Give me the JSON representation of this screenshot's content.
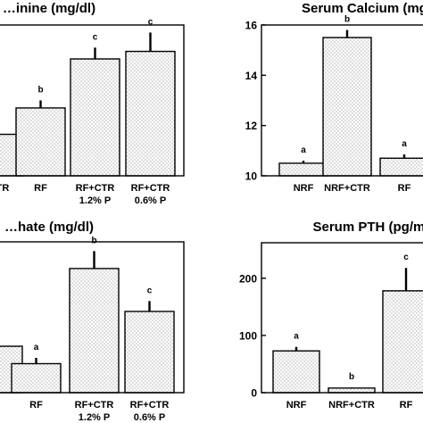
{
  "chart_data": [
    {
      "type": "bar",
      "title": "…inine (mg/dl)",
      "categories": [
        "…TR",
        "RF",
        "RF+CTR\n1.2% P",
        "RF+CTR\n0.6% P"
      ],
      "values": [
        2.1,
        2.8,
        4.1,
        4.3
      ],
      "errors": [
        0.0,
        0.2,
        0.3,
        0.5
      ],
      "sig_labels": [
        "",
        "b",
        "c",
        "c"
      ],
      "ylim": [
        1.0,
        5.0
      ],
      "yticks": [],
      "xlabel": "",
      "ylabel": "",
      "grid": false
    },
    {
      "type": "bar",
      "title": "Serum Calcium (mg/…",
      "categories": [
        "NRF",
        "NRF+CTR",
        "RF"
      ],
      "values": [
        10.5,
        15.5,
        10.7
      ],
      "errors": [
        0.1,
        0.3,
        0.15
      ],
      "sig_labels": [
        "a",
        "b",
        "a"
      ],
      "ylim": [
        10,
        16
      ],
      "yticks": [
        10,
        12,
        14,
        16
      ],
      "xlabel": "",
      "ylabel": "",
      "grid": false
    },
    {
      "type": "bar",
      "title": "…hate (mg/dl)",
      "categories": [
        "",
        "RF",
        "RF+CTR\n1.2% P",
        "RF+CTR\n0.6% P"
      ],
      "values": [
        4.0,
        2.5,
        10.7,
        7.0
      ],
      "errors": [
        0.0,
        0.5,
        1.5,
        0.9
      ],
      "sig_labels": [
        "",
        "a",
        "b",
        "c"
      ],
      "ylim": [
        0,
        13
      ],
      "yticks": [],
      "xlabel": "",
      "ylabel": "",
      "grid": false
    },
    {
      "type": "bar",
      "title": "Serum PTH (pg/ml)",
      "categories": [
        "NRF",
        "NRF+CTR",
        "RF"
      ],
      "values": [
        73,
        8,
        178
      ],
      "errors": [
        7,
        1,
        40
      ],
      "sig_labels": [
        "a",
        "b",
        "c"
      ],
      "ylim": [
        0,
        262
      ],
      "yticks": [
        0,
        100,
        200
      ],
      "xlabel": "",
      "ylabel": "",
      "grid": false
    }
  ]
}
